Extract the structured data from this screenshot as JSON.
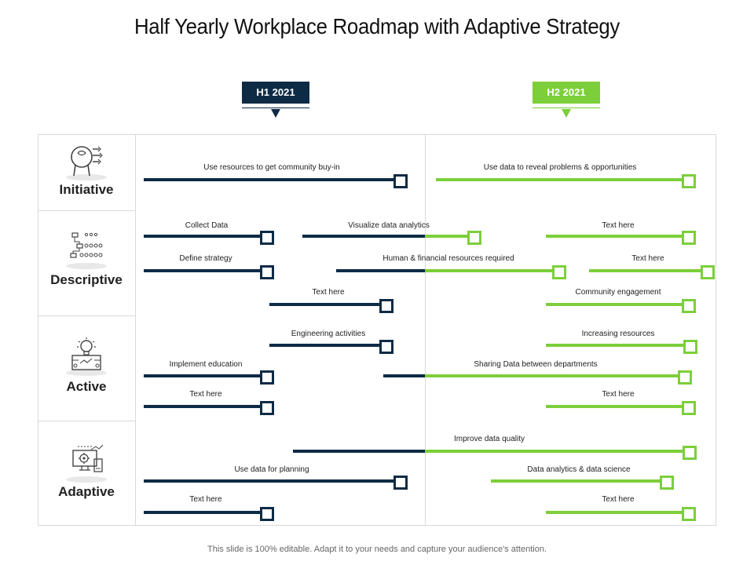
{
  "title": "Half Yearly Workplace Roadmap with Adaptive Strategy",
  "colors": {
    "navy": "#0e2b45",
    "green": "#7ccf3a",
    "grid": "#d9d9d9"
  },
  "phases": [
    {
      "label": "H1 2021"
    },
    {
      "label": "H2 2021"
    }
  ],
  "categories": [
    {
      "label": "Initiative",
      "icon": "brain-head-icon"
    },
    {
      "label": "Descriptive",
      "icon": "hierarchy-dots-icon"
    },
    {
      "label": "Active",
      "icon": "lightbulb-icon"
    },
    {
      "label": "Adaptive",
      "icon": "monitor-gear-icon"
    }
  ],
  "tasks": [
    {
      "label": "Use resources to get community buy-in"
    },
    {
      "label": "Use data to reveal problems & opportunities"
    },
    {
      "label": "Collect Data"
    },
    {
      "label": "Visualize data analytics"
    },
    {
      "label": "Text here"
    },
    {
      "label": "Define strategy"
    },
    {
      "label": "Human & financial resources required"
    },
    {
      "label": "Text here"
    },
    {
      "label": "Text here"
    },
    {
      "label": "Community engagement"
    },
    {
      "label": "Engineering activities"
    },
    {
      "label": "Increasing resources"
    },
    {
      "label": "Implement education"
    },
    {
      "label": "Sharing Data between departments"
    },
    {
      "label": "Text here"
    },
    {
      "label": "Text here"
    },
    {
      "label": "Improve data quality"
    },
    {
      "label": "Use data for planning"
    },
    {
      "label": "Data analytics & data science"
    },
    {
      "label": "Text here"
    },
    {
      "label": "Text here"
    }
  ],
  "footer": "This slide is 100% editable. Adapt it to your needs and capture your audience's attention."
}
